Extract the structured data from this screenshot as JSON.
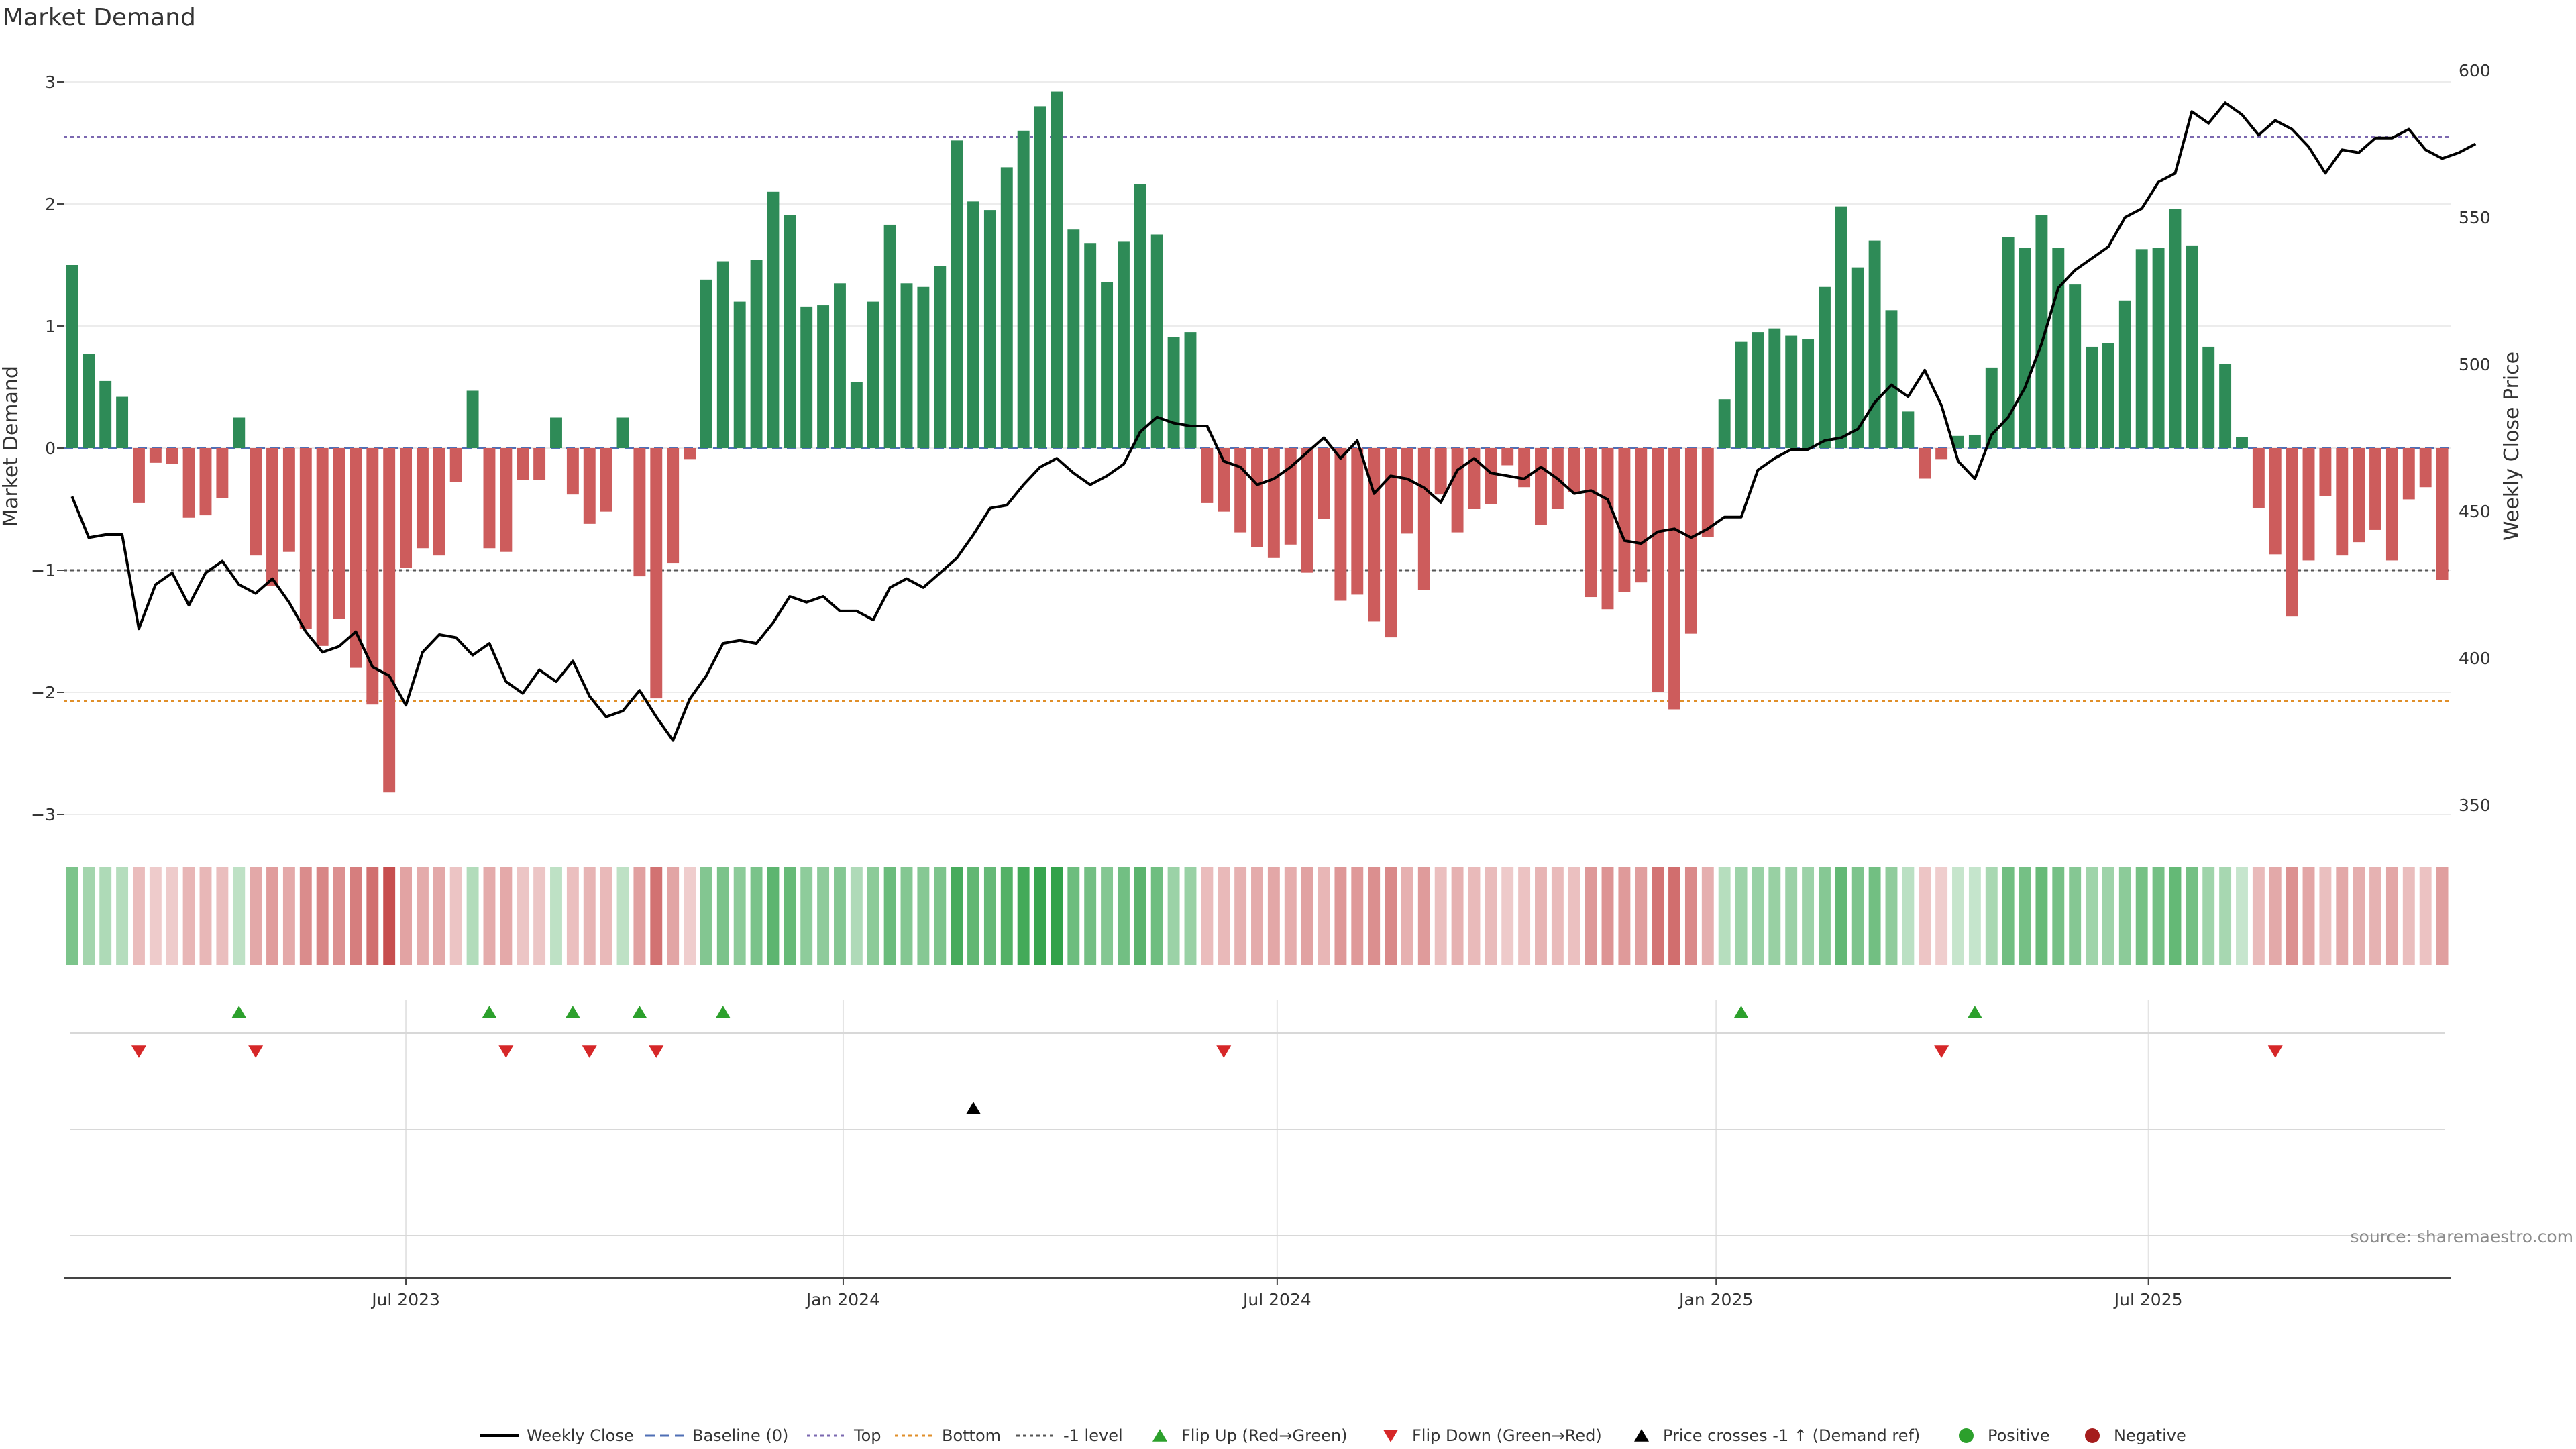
{
  "chart_data": {
    "type": "bar",
    "title": "Market Demand",
    "ylabel": "Market Demand",
    "y2label": "Weekly Close Price",
    "ylim": [
      -3.2,
      3.2
    ],
    "y2lim": [
      343,
      601
    ],
    "yticks": [
      3,
      2,
      1,
      0,
      -1,
      -2,
      -3
    ],
    "yticklabels": [
      "3",
      "2",
      "1",
      "0",
      "−1",
      "−2",
      "−3"
    ],
    "y2ticks": [
      600,
      550,
      500,
      450,
      400,
      350
    ],
    "y2ticklabels": [
      "600",
      "550",
      "500",
      "450",
      "400",
      "350"
    ],
    "xticklabels": [
      "Jul 2023",
      "Jan 2024",
      "Jul 2024",
      "Jan 2025",
      "Jul 2025"
    ],
    "xtick_week_index": [
      20.5,
      46.7,
      72.7,
      99.0,
      124.9
    ],
    "reference_lines": {
      "top": 2.55,
      "bottom": -2.07,
      "minus_one": -1
    },
    "colors": {
      "positive": "#2e8b57",
      "negative": "#cd5c5c",
      "price": "#000000",
      "top_line": "#7b68b0",
      "bottom_line": "#e08f2a",
      "minus_one_line": "#555555",
      "baseline": "#4f6fb5",
      "flip_up": "#2ca02c",
      "flip_down": "#d62728",
      "dot_positive": "#2ca02c",
      "dot_negative": "#a51c1c"
    },
    "series": [
      {
        "name": "Market Demand",
        "type": "bar",
        "values": [
          1.5,
          0.77,
          0.55,
          0.42,
          -0.45,
          -0.12,
          -0.13,
          -0.57,
          -0.55,
          -0.41,
          0.25,
          -0.88,
          -1.13,
          -0.85,
          -1.48,
          -1.62,
          -1.4,
          -1.8,
          -2.1,
          -2.82,
          -0.98,
          -0.82,
          -0.88,
          -0.28,
          0.47,
          -0.82,
          -0.85,
          -0.26,
          -0.26,
          0.25,
          -0.38,
          -0.62,
          -0.52,
          0.25,
          -1.05,
          -2.05,
          -0.94,
          -0.09,
          1.38,
          1.53,
          1.2,
          1.54,
          2.1,
          1.91,
          1.16,
          1.17,
          1.35,
          0.54,
          1.2,
          1.83,
          1.35,
          1.32,
          1.49,
          2.52,
          2.02,
          1.95,
          2.3,
          2.6,
          2.8,
          2.92,
          1.79,
          1.68,
          1.36,
          1.69,
          2.16,
          1.75,
          0.91,
          0.95,
          -0.45,
          -0.52,
          -0.69,
          -0.81,
          -0.9,
          -0.79,
          -1.02,
          -0.58,
          -1.25,
          -1.2,
          -1.42,
          -1.55,
          -0.7,
          -1.16,
          -0.38,
          -0.69,
          -0.5,
          -0.46,
          -0.14,
          -0.32,
          -0.63,
          -0.5,
          -0.36,
          -1.22,
          -1.32,
          -1.18,
          -1.1,
          -2.0,
          -2.14,
          -1.52,
          -0.73,
          0.4,
          0.87,
          0.95,
          0.98,
          0.92,
          0.89,
          1.32,
          1.98,
          1.48,
          1.7,
          1.13,
          0.3,
          -0.25,
          -0.09,
          0.1,
          0.11,
          0.66,
          1.73,
          1.64,
          1.91,
          1.64,
          1.34,
          0.83,
          0.86,
          1.21,
          1.63,
          1.64,
          1.96,
          1.66,
          0.83,
          0.69,
          0.09,
          -0.49,
          -0.87,
          -1.38,
          -0.92,
          -0.39,
          -0.88,
          -0.77,
          -0.67,
          -0.92,
          -0.42,
          -0.32,
          -1.08
        ]
      },
      {
        "name": "Weekly Close",
        "type": "line",
        "axis": "right",
        "values": [
          455,
          441,
          442,
          442,
          410,
          425,
          429,
          418,
          429,
          433,
          425,
          422,
          427,
          419,
          409,
          402,
          404,
          409,
          397,
          394,
          384,
          402,
          408,
          407,
          401,
          405,
          392,
          388,
          396,
          392,
          399,
          387,
          380,
          382,
          389,
          380,
          372,
          386,
          394,
          405,
          406,
          405,
          412,
          421,
          419,
          421,
          416,
          416,
          413,
          424,
          427,
          424,
          429,
          434,
          442,
          451,
          452,
          459,
          465,
          468,
          463,
          459,
          462,
          466,
          477,
          482,
          480,
          479,
          479,
          467,
          465,
          459,
          461,
          465,
          470,
          475,
          468,
          474,
          456,
          462,
          461,
          458,
          453,
          464,
          468,
          463,
          462,
          461,
          465,
          461,
          456,
          457,
          454,
          440,
          439,
          443,
          444,
          441,
          444,
          448,
          448,
          464,
          468,
          471,
          471,
          474,
          475,
          478,
          487,
          493,
          489,
          498,
          486,
          467,
          461,
          476,
          482,
          492,
          507,
          526,
          532,
          536,
          540,
          550,
          553,
          562,
          565,
          586,
          582,
          589,
          585,
          578,
          583,
          580,
          574,
          565,
          573,
          572,
          577,
          577,
          580,
          573,
          570,
          572,
          575
        ]
      }
    ],
    "markers": {
      "flip_up_weeks": [
        10,
        25,
        30,
        34,
        39,
        100,
        114
      ],
      "flip_down_weeks": [
        4,
        11,
        26,
        31,
        35,
        69,
        112,
        132
      ],
      "price_cross_weeks": [
        54
      ]
    },
    "legend": {
      "position": "bottom",
      "items": [
        {
          "label": "Weekly Close",
          "kind": "line-solid-black"
        },
        {
          "label": "Baseline (0)",
          "kind": "line-dashed-blue"
        },
        {
          "label": "Top",
          "kind": "line-dotted-purple"
        },
        {
          "label": "Bottom",
          "kind": "line-dotted-orange"
        },
        {
          "label": "-1 level",
          "kind": "line-dotted-gray"
        },
        {
          "label": "Flip Up (Red→Green)",
          "kind": "triangle-up-green"
        },
        {
          "label": "Flip Down (Green→Red)",
          "kind": "triangle-down-red"
        },
        {
          "label": "Price crosses -1 ↑ (Demand ref)",
          "kind": "triangle-up-black"
        },
        {
          "label": "Positive",
          "kind": "dot-green"
        },
        {
          "label": "Negative",
          "kind": "dot-red"
        }
      ]
    }
  },
  "source": "source: sharemaestro.com"
}
